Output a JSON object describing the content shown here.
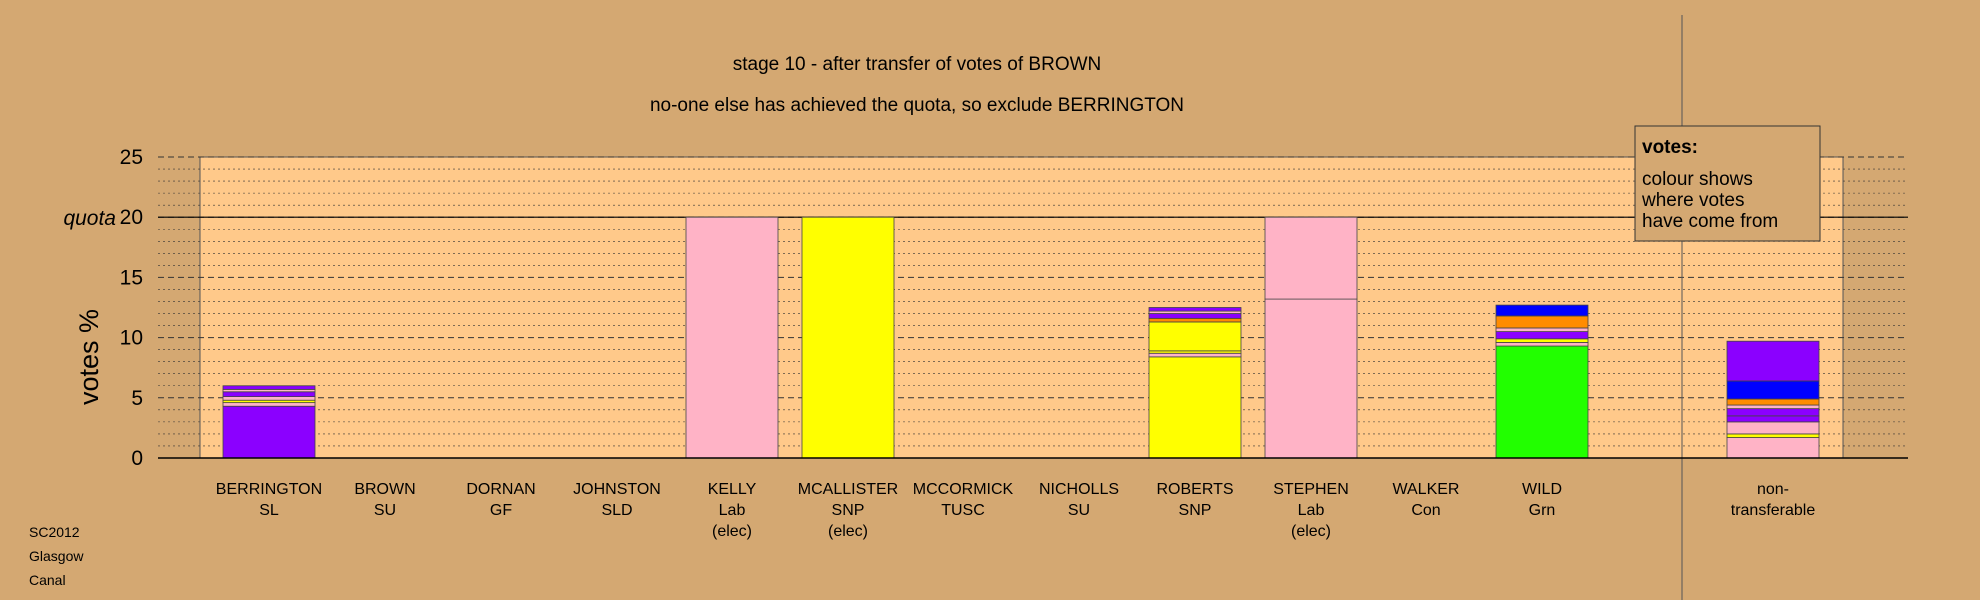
{
  "chart_data": {
    "type": "bar",
    "stacked": true,
    "title": "stage 10 - after transfer of votes of BROWN",
    "subtitle": "no-one else has achieved the quota, so exclude BERRINGTON",
    "ylabel": "votes %",
    "ylim": [
      0,
      25
    ],
    "yticks": [
      0,
      5,
      10,
      15,
      20,
      25
    ],
    "quota": 20,
    "quota_label": "quota",
    "grid": true,
    "legend_title": "votes:",
    "legend_lines": [
      "colour shows",
      "where votes",
      "have come from"
    ],
    "legend_placement": "top-right",
    "categories": [
      {
        "name": "BERRINGTON",
        "party": "SL",
        "note": ""
      },
      {
        "name": "BROWN",
        "party": "SU",
        "note": ""
      },
      {
        "name": "DORNAN",
        "party": "GF",
        "note": ""
      },
      {
        "name": "JOHNSTON",
        "party": "SLD",
        "note": ""
      },
      {
        "name": "KELLY",
        "party": "Lab",
        "note": "(elec)"
      },
      {
        "name": "MCALLISTER",
        "party": "SNP",
        "note": "(elec)"
      },
      {
        "name": "MCCORMICK",
        "party": "TUSC",
        "note": ""
      },
      {
        "name": "NICHOLLS",
        "party": "SU",
        "note": ""
      },
      {
        "name": "ROBERTS",
        "party": "SNP",
        "note": ""
      },
      {
        "name": "STEPHEN",
        "party": "Lab",
        "note": "(elec)"
      },
      {
        "name": "WALKER",
        "party": "Con",
        "note": ""
      },
      {
        "name": "WILD",
        "party": "Grn",
        "note": ""
      },
      {
        "name": "non-",
        "party": "transferable",
        "note": ""
      }
    ],
    "stacks": [
      [
        {
          "v": 4.3,
          "c": "#8B00FF"
        },
        {
          "v": 0.3,
          "c": "#FFB3C6"
        },
        {
          "v": 0.2,
          "c": "#FFFF00"
        },
        {
          "v": 0.3,
          "c": "#FFB3C6"
        },
        {
          "v": 0.4,
          "c": "#8B00FF"
        },
        {
          "v": 0.2,
          "c": "#FFB3C6"
        },
        {
          "v": 0.3,
          "c": "#8B00FF"
        }
      ],
      [],
      [],
      [],
      [
        {
          "v": 20.0,
          "c": "#FFB3C6"
        }
      ],
      [
        {
          "v": 20.0,
          "c": "#FFFF00"
        }
      ],
      [],
      [],
      [
        {
          "v": 8.4,
          "c": "#FFFF00"
        },
        {
          "v": 0.3,
          "c": "#FFB3C6"
        },
        {
          "v": 0.2,
          "c": "#FFFF00"
        },
        {
          "v": 2.4,
          "c": "#FFFF00"
        },
        {
          "v": 0.3,
          "c": "#FF8C00"
        },
        {
          "v": 0.4,
          "c": "#8B00FF"
        },
        {
          "v": 0.2,
          "c": "#FFB3C6"
        },
        {
          "v": 0.3,
          "c": "#8B00FF"
        }
      ],
      [
        {
          "v": 13.2,
          "c": "#FFB3C6"
        },
        {
          "v": 6.8,
          "c": "#FFB3C6"
        }
      ],
      [],
      [
        {
          "v": 9.3,
          "c": "#22FF00"
        },
        {
          "v": 0.3,
          "c": "#FFB3C6"
        },
        {
          "v": 0.3,
          "c": "#FFFF00"
        },
        {
          "v": 0.6,
          "c": "#8B00FF"
        },
        {
          "v": 0.3,
          "c": "#FFB3C6"
        },
        {
          "v": 1.0,
          "c": "#FF8C00"
        },
        {
          "v": 0.9,
          "c": "#0000FF"
        }
      ],
      [
        {
          "v": 1.7,
          "c": "#FFB3C6"
        },
        {
          "v": 0.3,
          "c": "#FFFF00"
        },
        {
          "v": 1.0,
          "c": "#FFB3C6"
        },
        {
          "v": 0.5,
          "c": "#8B00FF"
        },
        {
          "v": 0.6,
          "c": "#8B00FF"
        },
        {
          "v": 0.3,
          "c": "#FFB3C6"
        },
        {
          "v": 0.5,
          "c": "#FF8C00"
        },
        {
          "v": 1.5,
          "c": "#0000FF"
        },
        {
          "v": 3.3,
          "c": "#8B00FF"
        }
      ]
    ]
  },
  "footer": {
    "line1": "SC2012",
    "line2": "Glasgow",
    "line3": "Canal"
  },
  "colors": {
    "background": "#D4A872",
    "plot_area": "#FFC98A",
    "axis": "#000000"
  }
}
